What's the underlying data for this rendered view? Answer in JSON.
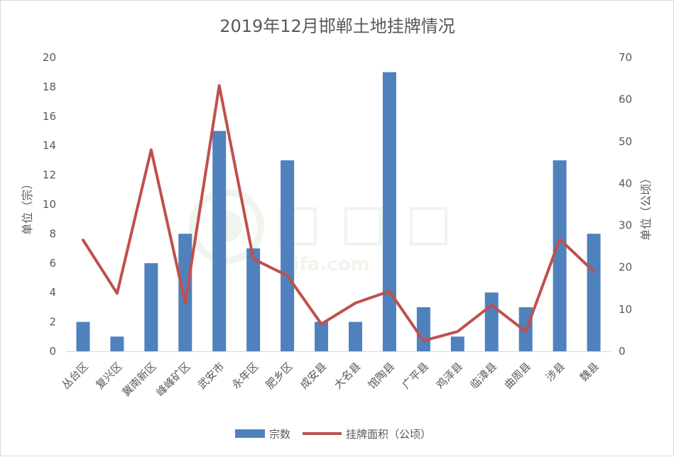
{
  "chart_data": {
    "type": "bar",
    "title": "2019年12月邯郸土地挂牌情况",
    "categories": [
      "丛台区",
      "复兴区",
      "冀南新区",
      "峰峰矿区",
      "武安市",
      "永年区",
      "肥乡区",
      "成安县",
      "大名县",
      "馆陶县",
      "广平县",
      "鸡泽县",
      "临漳县",
      "曲周县",
      "涉县",
      "魏县"
    ],
    "series": [
      {
        "name": "宗数",
        "type": "bar",
        "axis": "left",
        "color": "#4f81bd",
        "values": [
          2,
          1,
          6,
          8,
          15,
          7,
          13,
          2,
          2,
          19,
          3,
          1,
          4,
          3,
          13,
          8
        ]
      },
      {
        "name": "挂牌面积（公顷）",
        "type": "line",
        "axis": "right",
        "color": "#c0504d",
        "values": [
          26.5,
          13.8,
          48,
          11.5,
          63.3,
          22,
          18,
          6.5,
          11.5,
          14.3,
          2.5,
          4.7,
          11,
          4.7,
          26.7,
          19
        ]
      }
    ],
    "ylabel": "单位（宗）",
    "y2label": "单位（公顷）",
    "ylim": [
      0,
      20
    ],
    "y2lim": [
      0,
      70
    ],
    "yticks": [
      "0",
      "2",
      "4",
      "6",
      "8",
      "10",
      "12",
      "14",
      "16",
      "18",
      "20"
    ],
    "y2ticks": [
      "0",
      "10",
      "20",
      "30",
      "40",
      "50",
      "60",
      "70"
    ],
    "grid": false,
    "legend": "bottom",
    "watermark": "Lifa.com"
  }
}
